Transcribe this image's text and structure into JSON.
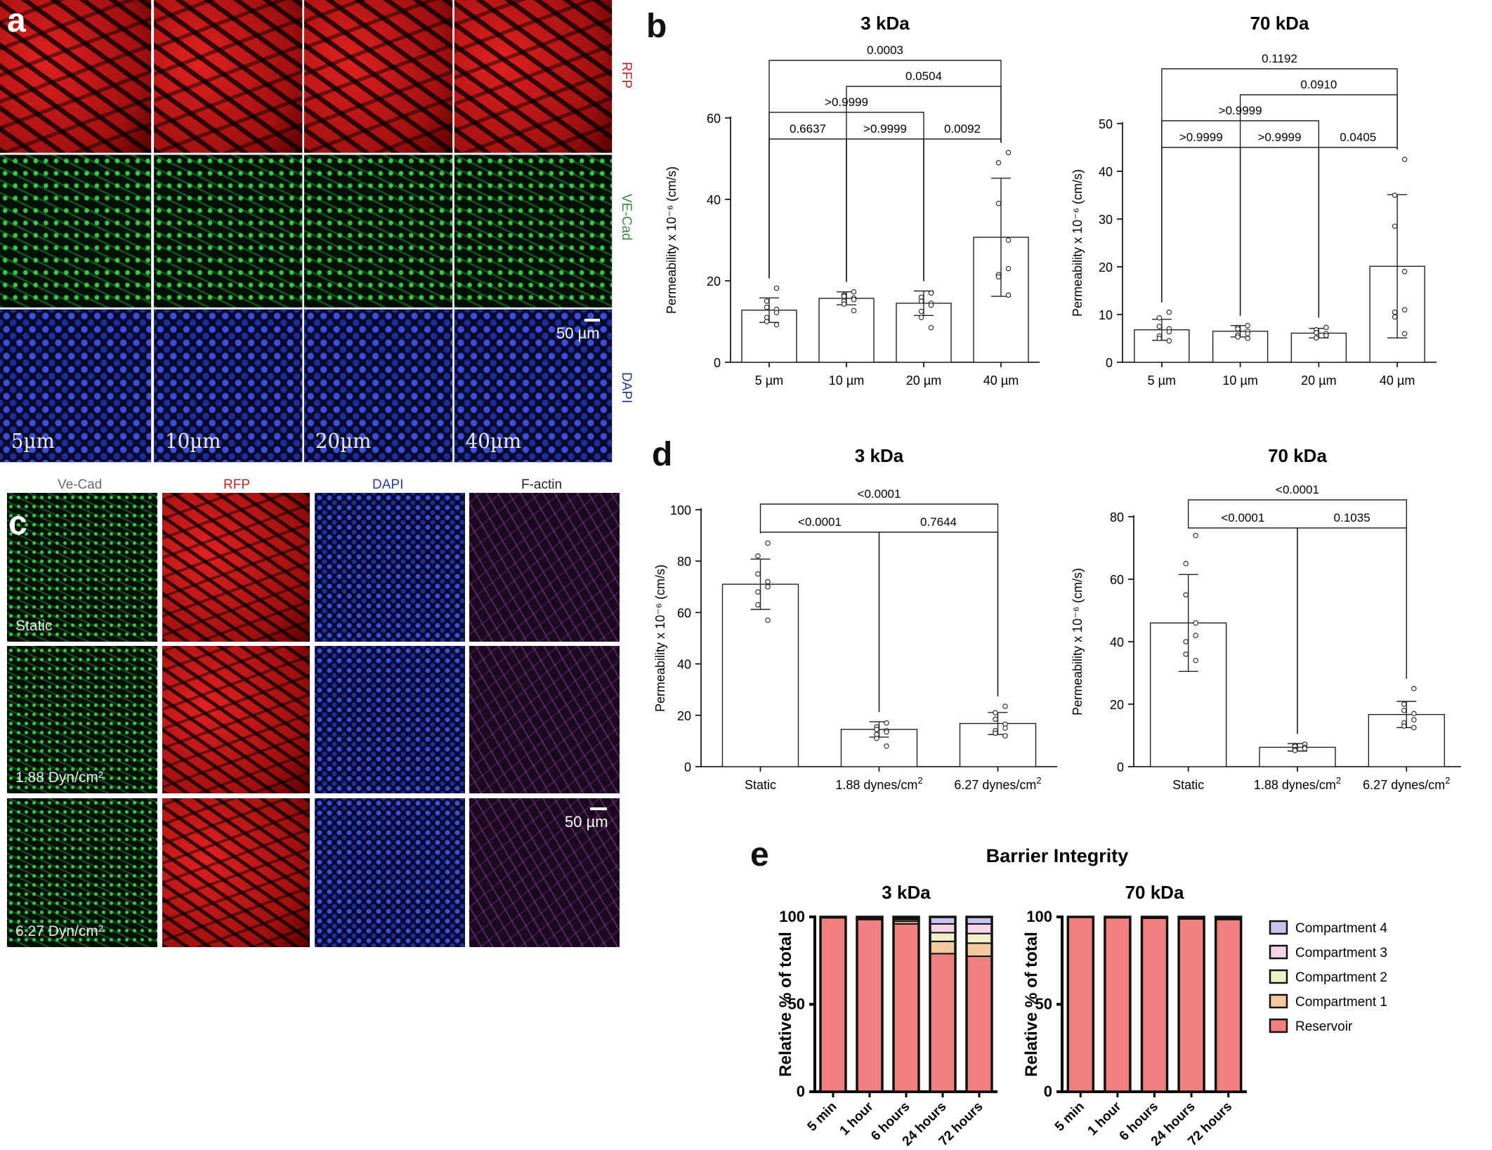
{
  "panel_a": {
    "letter": "a",
    "channels": [
      "RFP",
      "VE-Cad",
      "DAPI"
    ],
    "conditions": [
      "5µm",
      "10µm",
      "20µm",
      "40µm"
    ],
    "scale_bar": "50 µm",
    "colors": {
      "RFP": "#e02020",
      "VE-Cad": "#2ea34a",
      "DAPI": "#1a2fb0"
    }
  },
  "panel_c": {
    "letter": "c",
    "channels": [
      "Ve-Cad",
      "RFP",
      "DAPI",
      "F-actin"
    ],
    "conditions": [
      "Static",
      "1.88 Dyn/cm²",
      "6.27 Dyn/cm²"
    ],
    "scale_bar": "50 µm",
    "colors": {
      "Ve-Cad": "#2ea34a",
      "RFP": "#e02020",
      "DAPI": "#1a2fb0",
      "F-actin": "#9a2fb0"
    }
  },
  "panel_b_letter": "b",
  "panel_d_letter": "d",
  "panel_e_letter": "e",
  "chart_data": [
    {
      "id": "b-3kDa",
      "type": "bar",
      "title": "3 kDa",
      "ylabel": "Permeability x 10⁻⁶ (cm/s)",
      "categories": [
        "5 µm",
        "10 µm",
        "20 µm",
        "40 µm"
      ],
      "values": [
        12.8,
        15.7,
        14.5,
        30.7
      ],
      "sd": [
        3.0,
        1.6,
        3.0,
        14.5
      ],
      "points": [
        [
          18.2,
          15.0,
          13.5,
          13.0,
          12.2,
          11.0,
          10.0,
          9.2
        ],
        [
          17.3,
          16.5,
          16.2,
          15.8,
          15.4,
          15.0,
          14.3,
          12.7
        ],
        [
          17.0,
          16.0,
          15.0,
          14.5,
          14.0,
          12.5,
          11.0,
          8.5
        ],
        [
          51.5,
          49.0,
          39.0,
          30.0,
          23.0,
          21.5,
          21.0,
          16.5
        ]
      ],
      "ylim": [
        0,
        60
      ],
      "yticks": [
        0,
        20,
        40,
        60
      ],
      "comparisons": [
        {
          "from": 0,
          "to": 3,
          "label": "0.0003"
        },
        {
          "from": 1,
          "to": 3,
          "label": "0.0504"
        },
        {
          "from": 0,
          "to": 2,
          "label": ">0.9999"
        },
        {
          "from": 0,
          "to": 1,
          "label": "0.6637"
        },
        {
          "from": 1,
          "to": 2,
          "label": ">0.9999"
        },
        {
          "from": 2,
          "to": 3,
          "label": "0.0092"
        }
      ]
    },
    {
      "id": "b-70kDa",
      "type": "bar",
      "title": "70 kDa",
      "ylabel": "Permeability x 10⁻⁶ (cm/s)",
      "categories": [
        "5 µm",
        "10 µm",
        "20 µm",
        "40 µm"
      ],
      "values": [
        6.8,
        6.5,
        6.1,
        20.1
      ],
      "sd": [
        2.2,
        1.2,
        1.0,
        15.0
      ],
      "points": [
        [
          10.5,
          9.3,
          7.5,
          7.0,
          6.4,
          5.5,
          5.0,
          4.5
        ],
        [
          7.7,
          7.3,
          7.0,
          6.5,
          6.0,
          5.7,
          5.3,
          5.0
        ],
        [
          7.3,
          6.8,
          6.2,
          6.0,
          5.6,
          5.1
        ],
        [
          42.5,
          35.0,
          28.5,
          19.0,
          11.0,
          10.5,
          9.5,
          6.0
        ]
      ],
      "ylim": [
        0,
        50
      ],
      "yticks": [
        0,
        10,
        20,
        30,
        40,
        50
      ],
      "comparisons": [
        {
          "from": 0,
          "to": 3,
          "label": "0.1192"
        },
        {
          "from": 1,
          "to": 3,
          "label": "0.0910"
        },
        {
          "from": 0,
          "to": 2,
          "label": ">0.9999"
        },
        {
          "from": 0,
          "to": 1,
          "label": ">0.9999"
        },
        {
          "from": 1,
          "to": 2,
          "label": ">0.9999"
        },
        {
          "from": 2,
          "to": 3,
          "label": "0.0405"
        }
      ]
    },
    {
      "id": "d-3kDa",
      "type": "bar",
      "title": "3 kDa",
      "ylabel": "Permeability x 10⁻⁶ (cm/s)",
      "categories": [
        "Static",
        "1.88 dynes/cm²",
        "6.27 dynes/cm²"
      ],
      "values": [
        71.0,
        14.5,
        16.8
      ],
      "sd": [
        9.8,
        3.0,
        4.3
      ],
      "points": [
        [
          87.0,
          82.0,
          75.0,
          72.0,
          70.0,
          68.0,
          63.0,
          57.0
        ],
        [
          17.0,
          15.5,
          14.5,
          14.0,
          13.5,
          12.5,
          11.0,
          8.0
        ],
        [
          23.5,
          21.0,
          18.5,
          16.5,
          15.0,
          14.0,
          13.0,
          12.0
        ]
      ],
      "ylim": [
        0,
        100
      ],
      "yticks": [
        0,
        20,
        40,
        60,
        80,
        100
      ],
      "comparisons": [
        {
          "from": 0,
          "to": 2,
          "label": "<0.0001"
        },
        {
          "from": 0,
          "to": 1,
          "label": "<0.0001"
        },
        {
          "from": 1,
          "to": 2,
          "label": "0.7644"
        }
      ]
    },
    {
      "id": "d-70kDa",
      "type": "bar",
      "title": "70 kDa",
      "ylabel": "Permeability x 10⁻⁶ (cm/s)",
      "categories": [
        "Static",
        "1.88 dynes/cm²",
        "6.27 dynes/cm²"
      ],
      "values": [
        46.0,
        6.2,
        16.7
      ],
      "sd": [
        15.5,
        1.2,
        4.2
      ],
      "points": [
        [
          74.0,
          65.0,
          55.0,
          46.0,
          42.0,
          40.0,
          36.0,
          34.0
        ],
        [
          7.2,
          6.8,
          6.5,
          6.2,
          5.8,
          5.5,
          5.2
        ],
        [
          25.0,
          20.0,
          18.0,
          17.0,
          15.0,
          14.0,
          13.0,
          12.5
        ]
      ],
      "ylim": [
        0,
        80
      ],
      "yticks": [
        0,
        20,
        40,
        60,
        80
      ],
      "comparisons": [
        {
          "from": 0,
          "to": 2,
          "label": "<0.0001"
        },
        {
          "from": 0,
          "to": 1,
          "label": "<0.0001"
        },
        {
          "from": 1,
          "to": 2,
          "label": "0.1035"
        }
      ]
    },
    {
      "id": "e-3kDa",
      "type": "bar",
      "stacked": true,
      "suptitle": "Barrier Integrity",
      "title": "3 kDa",
      "ylabel": "Relative % of total",
      "categories": [
        "5 min",
        "1 hour",
        "6 hours",
        "24 hours",
        "72 hours"
      ],
      "series": [
        {
          "name": "Reservoir",
          "values": [
            99.5,
            98.5,
            96.0,
            79.0,
            77.5
          ]
        },
        {
          "name": "Compartment 1",
          "values": [
            0.3,
            0.8,
            1.5,
            7.0,
            7.5
          ]
        },
        {
          "name": "Compartment 2",
          "values": [
            0.1,
            0.3,
            1.0,
            5.0,
            5.5
          ]
        },
        {
          "name": "Compartment 3",
          "values": [
            0.1,
            0.2,
            0.8,
            5.0,
            5.5
          ]
        },
        {
          "name": "Compartment 4",
          "values": [
            0.0,
            0.2,
            0.7,
            4.0,
            4.0
          ]
        }
      ],
      "ylim": [
        0,
        100
      ],
      "yticks": [
        0,
        50,
        100
      ]
    },
    {
      "id": "e-70kDa",
      "type": "bar",
      "stacked": true,
      "title": "70 kDa",
      "ylabel": "Relative % of total",
      "categories": [
        "5 min",
        "1 hour",
        "6 hours",
        "24 hours",
        "72 hours"
      ],
      "series": [
        {
          "name": "Reservoir",
          "values": [
            99.8,
            99.5,
            99.2,
            98.8,
            98.5
          ]
        },
        {
          "name": "Compartment 1",
          "values": [
            0.1,
            0.2,
            0.3,
            0.4,
            0.5
          ]
        },
        {
          "name": "Compartment 2",
          "values": [
            0.05,
            0.1,
            0.2,
            0.3,
            0.3
          ]
        },
        {
          "name": "Compartment 3",
          "values": [
            0.03,
            0.1,
            0.2,
            0.3,
            0.4
          ]
        },
        {
          "name": "Compartment 4",
          "values": [
            0.02,
            0.1,
            0.1,
            0.2,
            0.3
          ]
        }
      ],
      "ylim": [
        0,
        100
      ],
      "yticks": [
        0,
        50,
        100
      ]
    }
  ],
  "legend_e": {
    "entries": [
      "Compartment 4",
      "Compartment 3",
      "Compartment 2",
      "Compartment 1",
      "Reservoir"
    ],
    "colors": {
      "Reservoir": "#f08080",
      "Compartment 1": "#f5c9a0",
      "Compartment 2": "#f2f0c8",
      "Compartment 3": "#f4d4e6",
      "Compartment 4": "#c9c4ee"
    }
  }
}
